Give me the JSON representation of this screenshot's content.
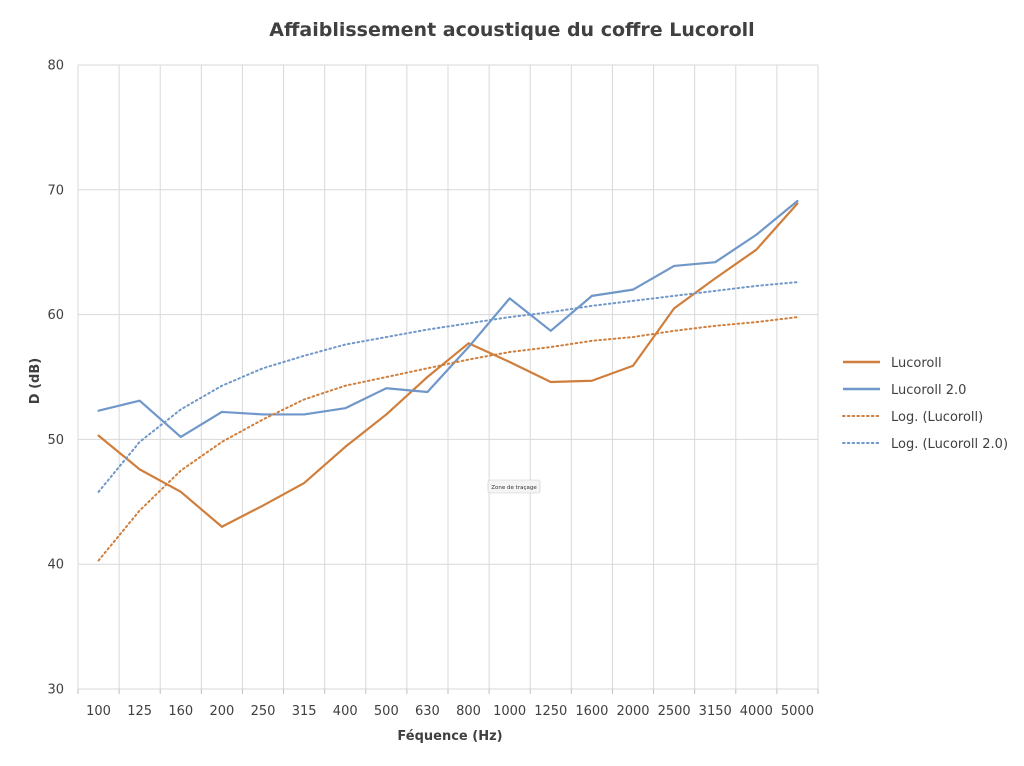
{
  "chart_data": {
    "type": "line",
    "title": "Affaiblissement acoustique du coffre Lucoroll",
    "xlabel": "Féquence (Hz)",
    "ylabel": "D (dB)",
    "categories": [
      "100",
      "125",
      "160",
      "200",
      "250",
      "315",
      "400",
      "500",
      "630",
      "800",
      "1000",
      "1250",
      "1600",
      "2000",
      "2500",
      "3150",
      "4000",
      "5000"
    ],
    "ylim": [
      30,
      80
    ],
    "yticks": [
      "30",
      "40",
      "50",
      "60",
      "70",
      "80"
    ],
    "grid": true,
    "legend_position": "right",
    "tooltip": "Zone de traçage",
    "series": [
      {
        "name": "Lucoroll",
        "style": "solid",
        "color": "#d07e3c",
        "values": [
          50.3,
          47.6,
          45.8,
          43.0,
          44.7,
          46.5,
          49.4,
          52.0,
          55.0,
          57.7,
          56.2,
          54.6,
          54.7,
          55.9,
          60.5,
          62.9,
          65.2,
          68.9
        ]
      },
      {
        "name": "Lucoroll 2.0",
        "style": "solid",
        "color": "#6f97c9",
        "values": [
          52.3,
          53.1,
          50.2,
          52.2,
          52.0,
          52.0,
          52.5,
          54.1,
          53.8,
          57.4,
          61.3,
          58.7,
          61.5,
          62.0,
          63.9,
          64.2,
          66.4,
          69.1
        ]
      },
      {
        "name": "Log. (Lucoroll)",
        "style": "dotted",
        "color": "#d07e3c",
        "trend_of": 0,
        "values": [
          40.3,
          44.3,
          47.5,
          49.8,
          51.6,
          53.2,
          54.3,
          55.0,
          55.7,
          56.4,
          57.0,
          57.4,
          57.9,
          58.2,
          58.7,
          59.1,
          59.4,
          59.8
        ]
      },
      {
        "name": "Log. (Lucoroll 2.0)",
        "style": "dotted",
        "color": "#6f97c9",
        "trend_of": 1,
        "values": [
          45.8,
          49.8,
          52.4,
          54.3,
          55.7,
          56.7,
          57.6,
          58.2,
          58.8,
          59.3,
          59.8,
          60.2,
          60.7,
          61.1,
          61.5,
          61.9,
          62.3,
          62.6
        ]
      }
    ]
  }
}
